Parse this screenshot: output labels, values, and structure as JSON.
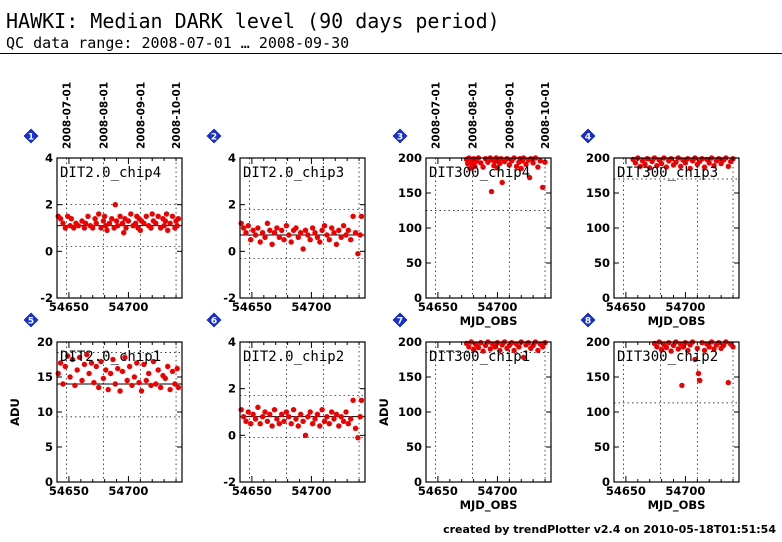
{
  "header": {
    "title": "HAWKI: Median DARK level (90 days period)",
    "subtitle": "QC data range: 2008-07-01 … 2008-09-30"
  },
  "footer": "created by trendPlotter v2.4 on 2010-05-18T01:51:54",
  "colors": {
    "points": "#ee0000",
    "badge": "#1530d8",
    "axis": "#000000"
  },
  "chart_data": [
    {
      "type": "scatter",
      "number": "1",
      "label": "DIT2.0_chip4",
      "ylim": [
        -2,
        4
      ],
      "yticks": [
        -2,
        0,
        2,
        4
      ],
      "xlim": [
        54640,
        54745
      ],
      "xticks": [
        54650,
        54700
      ],
      "date_ticks": [
        "2008-07-01",
        "2008-08-01",
        "2008-09-01",
        "2008-10-01"
      ],
      "xlabel": "",
      "ylabel": "",
      "median": 1.1,
      "band": [
        0.2,
        2.0
      ],
      "x": [
        54641,
        54643,
        54645,
        54647,
        54649,
        54651,
        54652,
        54654,
        54656,
        54658,
        54661,
        54663,
        54664,
        54666,
        54668,
        54670,
        54672,
        54673,
        54675,
        54677,
        54679,
        54680,
        54681,
        54682,
        54684,
        54686,
        54688,
        54689,
        54690,
        54691,
        54693,
        54695,
        54696,
        54697,
        54698,
        54700,
        54702,
        54704,
        54706,
        54707,
        54708,
        54709,
        54710,
        54711,
        54713,
        54715,
        54717,
        54719,
        54720,
        54721,
        54723,
        54725,
        54727,
        54729,
        54730,
        54731,
        54732,
        54733,
        54735,
        54737,
        54739,
        54740,
        54741,
        54742
      ],
      "y": [
        1.5,
        1.4,
        1.2,
        1.0,
        1.5,
        1.1,
        1.4,
        1.0,
        1.2,
        1.1,
        1.3,
        1.0,
        1.2,
        1.5,
        1.1,
        1.0,
        1.4,
        1.2,
        1.6,
        1.0,
        1.3,
        1.5,
        1.1,
        0.9,
        1.2,
        1.4,
        1.0,
        2.0,
        1.3,
        1.1,
        1.5,
        1.2,
        0.8,
        1.4,
        1.0,
        1.3,
        1.6,
        1.1,
        1.2,
        1.5,
        1.0,
        1.4,
        0.9,
        1.3,
        1.2,
        1.5,
        1.1,
        1.0,
        1.6,
        1.3,
        1.2,
        1.5,
        1.0,
        1.4,
        1.1,
        1.3,
        1.6,
        0.9,
        1.2,
        1.5,
        1.0,
        1.3,
        1.1,
        1.4
      ]
    },
    {
      "type": "scatter",
      "number": "2",
      "label": "DIT2.0_chip3",
      "ylim": [
        -2,
        4
      ],
      "yticks": [
        -2,
        0,
        2,
        4
      ],
      "xlim": [
        54640,
        54745
      ],
      "xticks": [
        54650,
        54700
      ],
      "date_ticks": [],
      "xlabel": "",
      "ylabel": "",
      "median": 0.7,
      "band": [
        -0.3,
        1.8
      ],
      "x": [
        54641,
        54643,
        54645,
        54647,
        54649,
        54651,
        54653,
        54655,
        54657,
        54659,
        54661,
        54663,
        54665,
        54667,
        54669,
        54671,
        54673,
        54675,
        54677,
        54679,
        54681,
        54683,
        54685,
        54687,
        54689,
        54691,
        54693,
        54695,
        54697,
        54699,
        54701,
        54703,
        54705,
        54707,
        54709,
        54711,
        54713,
        54715,
        54717,
        54719,
        54721,
        54723,
        54725,
        54727,
        54729,
        54731,
        54733,
        54735,
        54737,
        54739,
        54741,
        54742
      ],
      "y": [
        1.2,
        1.0,
        0.8,
        1.1,
        0.5,
        0.9,
        0.7,
        1.0,
        0.4,
        0.8,
        0.6,
        1.2,
        0.9,
        0.3,
        0.8,
        1.0,
        0.6,
        0.9,
        0.5,
        1.1,
        0.7,
        0.4,
        0.9,
        1.0,
        0.6,
        0.8,
        0.1,
        0.9,
        0.7,
        0.5,
        1.0,
        0.8,
        0.6,
        0.4,
        0.9,
        1.1,
        0.7,
        0.5,
        1.0,
        0.8,
        0.3,
        0.9,
        0.6,
        1.1,
        0.7,
        0.9,
        0.5,
        1.5,
        0.8,
        -0.1,
        0.7,
        1.5
      ]
    },
    {
      "type": "scatter",
      "number": "3",
      "label": "DIT300_chip4",
      "ylim": [
        0,
        200
      ],
      "yticks": [
        0,
        50,
        100,
        150,
        200
      ],
      "xlim": [
        54640,
        54745
      ],
      "xticks": [
        54650,
        54700
      ],
      "date_ticks": [
        "2008-07-01",
        "2008-08-01",
        "2008-09-01",
        "2008-10-01"
      ],
      "xlabel": "MJD_OBS",
      "ylabel": "",
      "median": 200,
      "band": [
        125,
        200
      ],
      "x": [
        54674,
        54675,
        54676,
        54677,
        54678,
        54679,
        54680,
        54681,
        54682,
        54684,
        54686,
        54688,
        54690,
        54692,
        54694,
        54695,
        54696,
        54697,
        54698,
        54699,
        54700,
        54701,
        54702,
        54703,
        54704,
        54706,
        54708,
        54710,
        54712,
        54714,
        54716,
        54718,
        54719,
        54720,
        54721,
        54722,
        54724,
        54726,
        54727,
        54728,
        54730,
        54732,
        54734,
        54736,
        54738,
        54740
      ],
      "y": [
        198,
        192,
        200,
        185,
        196,
        190,
        199,
        188,
        195,
        200,
        193,
        187,
        199,
        194,
        200,
        152,
        197,
        189,
        195,
        200,
        186,
        198,
        192,
        199,
        165,
        195,
        199,
        190,
        196,
        200,
        188,
        194,
        199,
        185,
        196,
        200,
        191,
        197,
        172,
        199,
        193,
        200,
        187,
        196,
        158,
        194
      ]
    },
    {
      "type": "scatter",
      "number": "4",
      "label": "DIT300_chip3",
      "ylim": [
        0,
        200
      ],
      "yticks": [
        0,
        50,
        100,
        150,
        200
      ],
      "xlim": [
        54640,
        54745
      ],
      "xticks": [
        54650,
        54700
      ],
      "date_ticks": [],
      "xlabel": "MJD_OBS",
      "ylabel": "",
      "median": 200,
      "band": [
        170,
        200
      ],
      "x": [
        54656,
        54658,
        54660,
        54662,
        54664,
        54666,
        54668,
        54670,
        54672,
        54674,
        54676,
        54678,
        54680,
        54682,
        54684,
        54686,
        54688,
        54690,
        54692,
        54694,
        54696,
        54698,
        54700,
        54702,
        54704,
        54706,
        54708,
        54710,
        54712,
        54714,
        54716,
        54718,
        54720,
        54722,
        54724,
        54726,
        54728,
        54730,
        54732,
        54734,
        54736,
        54738,
        54740
      ],
      "y": [
        198,
        193,
        200,
        188,
        196,
        191,
        199,
        186,
        195,
        200,
        189,
        197,
        192,
        200,
        187,
        196,
        199,
        190,
        194,
        200,
        188,
        197,
        193,
        199,
        185,
        196,
        200,
        191,
        195,
        199,
        187,
        198,
        193,
        200,
        189,
        196,
        199,
        192,
        197,
        200,
        188,
        195,
        199
      ]
    },
    {
      "type": "scatter",
      "number": "5",
      "label": "DIT2.0_chip1",
      "ylim": [
        0,
        20
      ],
      "yticks": [
        0,
        5,
        10,
        15,
        20
      ],
      "xlim": [
        54640,
        54745
      ],
      "xticks": [
        54650,
        54700
      ],
      "date_ticks": [],
      "xlabel": "",
      "ylabel": "ADU",
      "median": 14.0,
      "band": [
        9.3,
        18.5
      ],
      "x": [
        54641,
        54643,
        54645,
        54647,
        54649,
        54651,
        54653,
        54655,
        54657,
        54659,
        54661,
        54663,
        54665,
        54667,
        54669,
        54671,
        54673,
        54675,
        54677,
        54679,
        54681,
        54683,
        54685,
        54687,
        54689,
        54691,
        54693,
        54695,
        54697,
        54699,
        54701,
        54703,
        54705,
        54707,
        54709,
        54711,
        54713,
        54715,
        54717,
        54719,
        54721,
        54723,
        54725,
        54727,
        54729,
        54731,
        54733,
        54735,
        54737,
        54739,
        54741,
        54742
      ],
      "y": [
        15.5,
        17.0,
        14.0,
        16.5,
        18.0,
        15.0,
        17.5,
        13.8,
        16.0,
        17.8,
        14.5,
        16.8,
        18.2,
        15.5,
        17.0,
        14.2,
        16.5,
        13.5,
        17.2,
        14.8,
        16.0,
        13.2,
        15.5,
        17.5,
        14.0,
        16.2,
        13.0,
        15.8,
        17.8,
        14.5,
        16.5,
        13.8,
        15.0,
        17.0,
        14.2,
        13.0,
        16.8,
        14.5,
        15.5,
        13.8,
        17.2,
        14.0,
        16.0,
        13.5,
        15.2,
        14.8,
        16.5,
        13.2,
        15.8,
        14.0,
        16.2,
        13.5
      ]
    },
    {
      "type": "scatter",
      "number": "6",
      "label": "DIT2.0_chip2",
      "ylim": [
        -2,
        4
      ],
      "yticks": [
        -2,
        0,
        2,
        4
      ],
      "xlim": [
        54640,
        54745
      ],
      "xticks": [
        54650,
        54700
      ],
      "date_ticks": [],
      "xlabel": "",
      "ylabel": "",
      "median": 0.8,
      "band": [
        -0.1,
        1.7
      ],
      "x": [
        54641,
        54643,
        54645,
        54647,
        54649,
        54651,
        54653,
        54655,
        54657,
        54659,
        54661,
        54663,
        54665,
        54667,
        54669,
        54671,
        54673,
        54675,
        54677,
        54679,
        54681,
        54683,
        54685,
        54687,
        54689,
        54691,
        54693,
        54695,
        54697,
        54699,
        54701,
        54703,
        54705,
        54707,
        54709,
        54711,
        54713,
        54715,
        54717,
        54719,
        54721,
        54723,
        54725,
        54727,
        54729,
        54731,
        54733,
        54735,
        54737,
        54739,
        54741,
        54742
      ],
      "y": [
        1.1,
        0.8,
        0.6,
        1.0,
        0.5,
        0.9,
        0.7,
        1.2,
        0.5,
        0.8,
        1.0,
        0.6,
        0.9,
        0.4,
        1.1,
        0.7,
        0.5,
        0.9,
        0.6,
        1.0,
        0.8,
        0.5,
        1.1,
        0.7,
        0.4,
        0.9,
        0.6,
        0.0,
        0.8,
        1.0,
        0.5,
        0.7,
        0.9,
        0.4,
        1.1,
        0.6,
        0.8,
        0.5,
        1.0,
        0.7,
        0.9,
        0.4,
        0.8,
        0.6,
        1.0,
        0.5,
        0.7,
        1.5,
        0.3,
        -0.1,
        0.8,
        1.5
      ]
    },
    {
      "type": "scatter",
      "number": "7",
      "label": "DIT300_chip1",
      "ylim": [
        0,
        200
      ],
      "yticks": [
        0,
        50,
        100,
        150,
        200
      ],
      "xlim": [
        54640,
        54745
      ],
      "xticks": [
        54650,
        54700
      ],
      "date_ticks": [],
      "xlabel": "MJD_OBS",
      "ylabel": "ADU",
      "median": 200,
      "band": [
        185,
        200
      ],
      "x": [
        54674,
        54676,
        54678,
        54680,
        54682,
        54684,
        54686,
        54688,
        54690,
        54692,
        54694,
        54696,
        54698,
        54700,
        54702,
        54704,
        54706,
        54708,
        54710,
        54712,
        54714,
        54716,
        54718,
        54720,
        54722,
        54724,
        54726,
        54728,
        54730,
        54732,
        54734,
        54736,
        54738,
        54740
      ],
      "y": [
        198,
        193,
        200,
        189,
        196,
        192,
        199,
        187,
        195,
        200,
        190,
        197,
        193,
        199,
        188,
        196,
        200,
        191,
        195,
        199,
        188,
        197,
        193,
        200,
        178,
        196,
        199,
        191,
        195,
        200,
        188,
        197,
        193,
        199
      ]
    },
    {
      "type": "scatter",
      "number": "8",
      "label": "DIT300_chip2",
      "ylim": [
        0,
        200
      ],
      "yticks": [
        0,
        50,
        100,
        150,
        200
      ],
      "xlim": [
        54640,
        54745
      ],
      "xticks": [
        54650,
        54700
      ],
      "date_ticks": [],
      "xlabel": "MJD_OBS",
      "ylabel": "",
      "median": 200,
      "band": [
        113,
        200
      ],
      "x": [
        54674,
        54676,
        54678,
        54680,
        54682,
        54684,
        54686,
        54688,
        54690,
        54692,
        54694,
        54696,
        54697,
        54698,
        54700,
        54702,
        54704,
        54706,
        54708,
        54710,
        54711,
        54712,
        54714,
        54716,
        54718,
        54720,
        54722,
        54724,
        54726,
        54728,
        54730,
        54732,
        54734,
        54736,
        54738,
        54740
      ],
      "y": [
        198,
        193,
        200,
        189,
        196,
        192,
        199,
        187,
        195,
        200,
        190,
        197,
        138,
        193,
        199,
        188,
        196,
        200,
        175,
        191,
        155,
        145,
        199,
        188,
        197,
        193,
        200,
        190,
        196,
        199,
        191,
        195,
        200,
        142,
        197,
        193
      ]
    }
  ]
}
